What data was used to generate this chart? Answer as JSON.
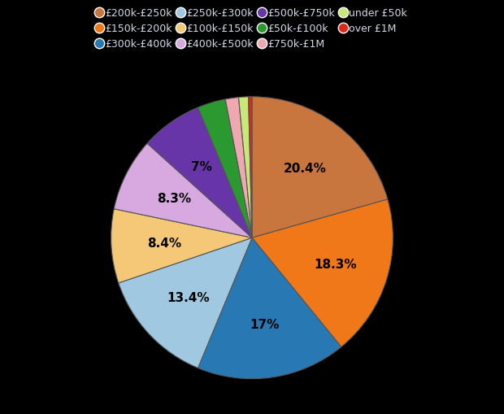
{
  "labels": [
    "£200k-£250k",
    "£150k-£200k",
    "£300k-£400k",
    "£250k-£300k",
    "£100k-£150k",
    "£400k-£500k",
    "£500k-£750k",
    "£50k-£100k",
    "£750k-£1M",
    "under £50k",
    "over £1M"
  ],
  "values": [
    20.4,
    18.3,
    17.0,
    13.4,
    8.4,
    8.3,
    7.0,
    3.2,
    1.5,
    1.1,
    0.4
  ],
  "colors": [
    "#c8763d",
    "#f07818",
    "#2878b4",
    "#a0c8e0",
    "#f5c878",
    "#d8a8e0",
    "#6835a8",
    "#2a9a30",
    "#f0a8b0",
    "#c8e878",
    "#e02818"
  ],
  "autopct_labels": [
    "20.4%",
    "18.3%",
    "17%",
    "13.4%",
    "8.4%",
    "8.3%",
    "7%",
    "",
    "",
    "",
    ""
  ],
  "background_color": "#000000",
  "text_color": "#000000",
  "legend_text_color": "#d0d8e8",
  "startangle": 90
}
